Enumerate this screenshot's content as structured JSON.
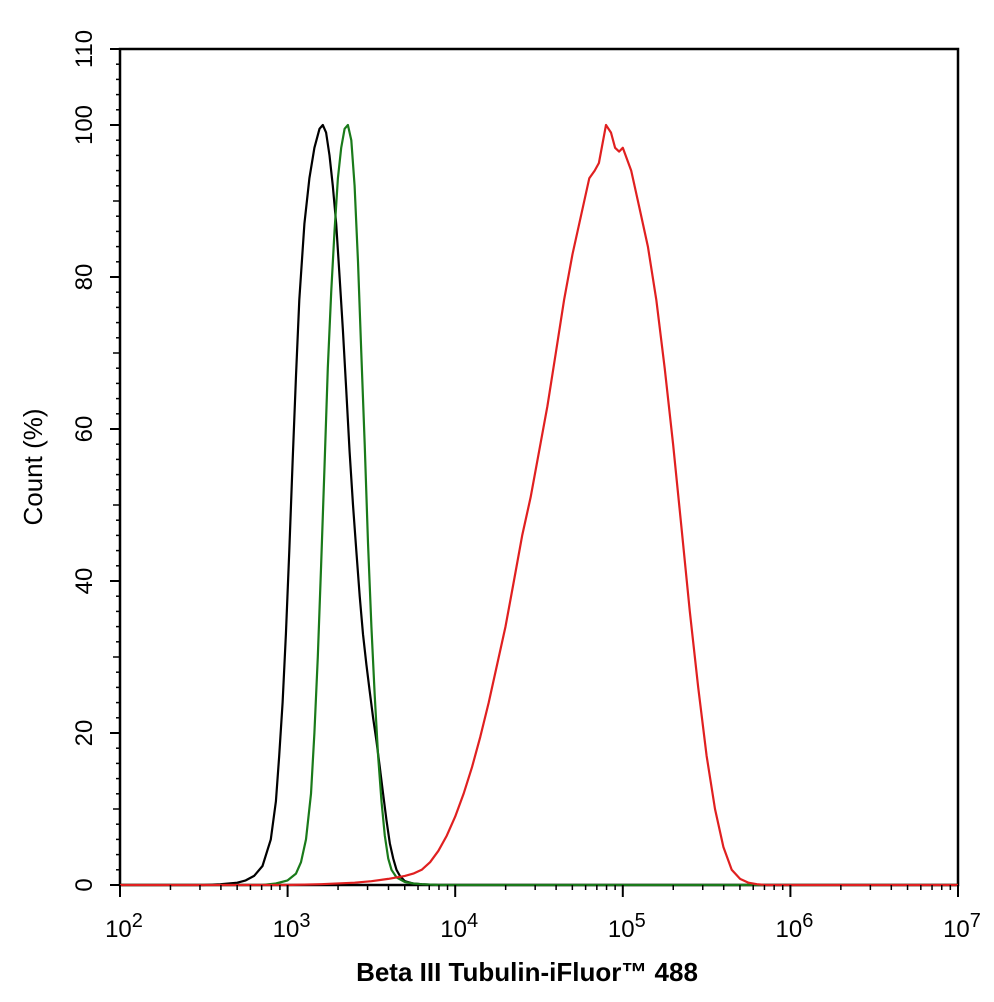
{
  "chart_data": {
    "type": "line",
    "title": "",
    "xlabel": "Beta III Tubulin-iFluor™ 488",
    "ylabel": "Count  (%)",
    "xscale": "log",
    "xlim": [
      100,
      10000000
    ],
    "ylim": [
      0,
      110
    ],
    "x_ticks": [
      {
        "value": 100,
        "base": "10",
        "exp": "2"
      },
      {
        "value": 1000,
        "base": "10",
        "exp": "3"
      },
      {
        "value": 10000,
        "base": "10",
        "exp": "4"
      },
      {
        "value": 100000,
        "base": "10",
        "exp": "5"
      },
      {
        "value": 1000000,
        "base": "10",
        "exp": "6"
      },
      {
        "value": 10000000,
        "base": "10",
        "exp": "7"
      }
    ],
    "y_ticks": [
      {
        "value": 0,
        "label": "0"
      },
      {
        "value": 20,
        "label": "20"
      },
      {
        "value": 40,
        "label": "40"
      },
      {
        "value": 60,
        "label": "60"
      },
      {
        "value": 80,
        "label": "80"
      },
      {
        "value": 100,
        "label": "100"
      },
      {
        "value": 110,
        "label": "110"
      }
    ],
    "grid": false,
    "legend": "none",
    "series": [
      {
        "color": "#000000",
        "points": [
          [
            100,
            0
          ],
          [
            316,
            0
          ],
          [
            398,
            0.1
          ],
          [
            501,
            0.3
          ],
          [
            562,
            0.6
          ],
          [
            631,
            1.2
          ],
          [
            708,
            2.5
          ],
          [
            794,
            6
          ],
          [
            851,
            11
          ],
          [
            891,
            17
          ],
          [
            933,
            24
          ],
          [
            977,
            33
          ],
          [
            1023,
            44
          ],
          [
            1072,
            56
          ],
          [
            1122,
            67
          ],
          [
            1175,
            77
          ],
          [
            1259,
            87
          ],
          [
            1349,
            93
          ],
          [
            1445,
            97
          ],
          [
            1549,
            99.5
          ],
          [
            1622,
            100
          ],
          [
            1698,
            99
          ],
          [
            1778,
            96
          ],
          [
            1862,
            92
          ],
          [
            1950,
            87
          ],
          [
            2042,
            80
          ],
          [
            2138,
            73
          ],
          [
            2239,
            65
          ],
          [
            2344,
            57
          ],
          [
            2455,
            50
          ],
          [
            2570,
            44
          ],
          [
            2692,
            38
          ],
          [
            2818,
            33
          ],
          [
            2951,
            29
          ],
          [
            3090,
            25.5
          ],
          [
            3236,
            22
          ],
          [
            3388,
            19
          ],
          [
            3548,
            15.5
          ],
          [
            3715,
            12
          ],
          [
            3890,
            8.5
          ],
          [
            4074,
            5.5
          ],
          [
            4266,
            3.5
          ],
          [
            4467,
            2
          ],
          [
            4677,
            1.2
          ],
          [
            5012,
            0.5
          ],
          [
            5623,
            0.2
          ],
          [
            6310,
            0.1
          ],
          [
            7943,
            0
          ],
          [
            10000000,
            0
          ]
        ]
      },
      {
        "color": "#1a7a1a",
        "points": [
          [
            100,
            0
          ],
          [
            708,
            0
          ],
          [
            851,
            0.2
          ],
          [
            1000,
            0.6
          ],
          [
            1122,
            1.5
          ],
          [
            1202,
            3
          ],
          [
            1288,
            6
          ],
          [
            1380,
            12
          ],
          [
            1445,
            20
          ],
          [
            1514,
            30
          ],
          [
            1585,
            42
          ],
          [
            1660,
            55
          ],
          [
            1738,
            68
          ],
          [
            1820,
            78
          ],
          [
            1905,
            86
          ],
          [
            1995,
            93
          ],
          [
            2089,
            97
          ],
          [
            2188,
            99.5
          ],
          [
            2291,
            100
          ],
          [
            2399,
            98
          ],
          [
            2512,
            92
          ],
          [
            2630,
            82
          ],
          [
            2754,
            70
          ],
          [
            2884,
            58
          ],
          [
            3020,
            45
          ],
          [
            3162,
            34
          ],
          [
            3311,
            25
          ],
          [
            3467,
            17
          ],
          [
            3631,
            11
          ],
          [
            3802,
            6.5
          ],
          [
            3981,
            3.5
          ],
          [
            4169,
            2
          ],
          [
            4467,
            1
          ],
          [
            5012,
            0.4
          ],
          [
            5623,
            0.2
          ],
          [
            6310,
            0.1
          ],
          [
            7943,
            0
          ],
          [
            10000000,
            0
          ]
        ]
      },
      {
        "color": "#e02020",
        "points": [
          [
            100,
            0
          ],
          [
            1000,
            0
          ],
          [
            1585,
            0.1
          ],
          [
            2512,
            0.3
          ],
          [
            3162,
            0.5
          ],
          [
            3981,
            0.8
          ],
          [
            5012,
            1.2
          ],
          [
            5623,
            1.5
          ],
          [
            6310,
            2
          ],
          [
            7079,
            3
          ],
          [
            7943,
            4.5
          ],
          [
            8913,
            6.5
          ],
          [
            10000,
            9
          ],
          [
            11220,
            12
          ],
          [
            12589,
            15.5
          ],
          [
            14125,
            19.5
          ],
          [
            15849,
            24
          ],
          [
            17783,
            29
          ],
          [
            19953,
            34
          ],
          [
            22387,
            40
          ],
          [
            25119,
            46
          ],
          [
            28184,
            51
          ],
          [
            31623,
            57
          ],
          [
            35481,
            63
          ],
          [
            39811,
            70
          ],
          [
            44668,
            77
          ],
          [
            50119,
            83
          ],
          [
            56234,
            88
          ],
          [
            63096,
            93
          ],
          [
            68000,
            94
          ],
          [
            72000,
            95
          ],
          [
            79433,
            100
          ],
          [
            85000,
            99
          ],
          [
            90000,
            97
          ],
          [
            95000,
            96.5
          ],
          [
            100000,
            97
          ],
          [
            112202,
            94
          ],
          [
            125893,
            89
          ],
          [
            141254,
            84
          ],
          [
            158489,
            77
          ],
          [
            177828,
            68
          ],
          [
            199526,
            58
          ],
          [
            223872,
            47
          ],
          [
            251189,
            36
          ],
          [
            281838,
            26
          ],
          [
            316228,
            17
          ],
          [
            354813,
            10
          ],
          [
            398107,
            5
          ],
          [
            446684,
            2
          ],
          [
            501187,
            0.8
          ],
          [
            562341,
            0.3
          ],
          [
            630957,
            0.1
          ],
          [
            707946,
            0
          ],
          [
            10000000,
            0
          ]
        ]
      }
    ]
  }
}
